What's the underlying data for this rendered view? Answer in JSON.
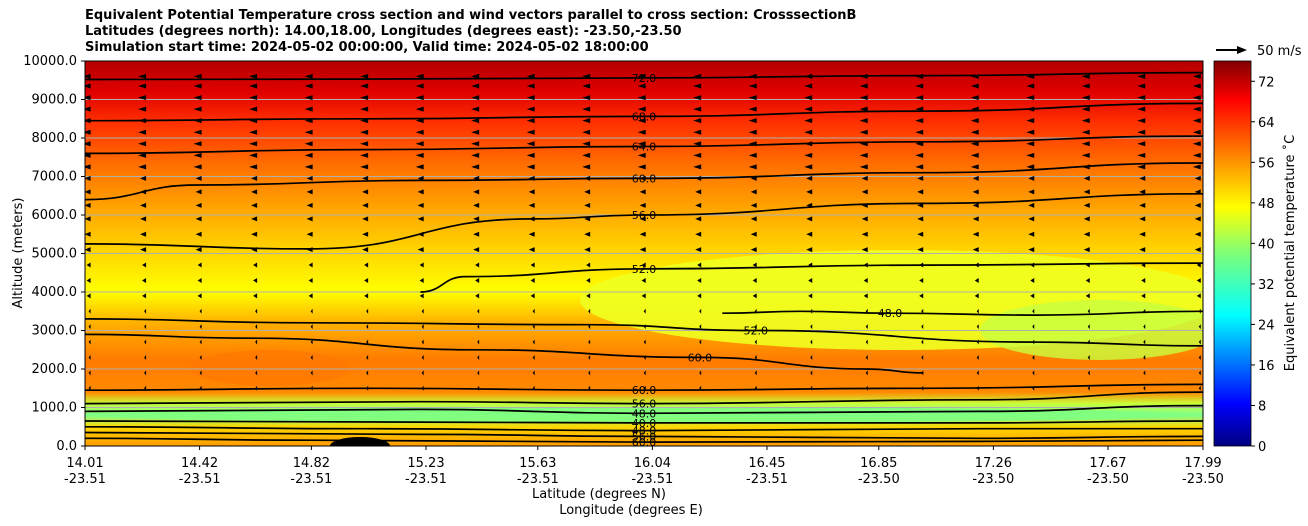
{
  "chart_data": {
    "type": "contourf",
    "title_lines": [
      "Equivalent Potential Temperature cross section and wind vectors parallel to cross section: CrosssectionB",
      "Latitudes (degrees north): 14.00,18.00, Longitudes (degrees east): -23.50,-23.50",
      "Simulation start time: 2024-05-02 00:00:00, Valid time: 2024-05-02 18:00:00"
    ],
    "xlabel_lat": "Latitude (degrees N)",
    "xlabel_lon": "Longitude (degrees E)",
    "ylabel": "Altitude (meters)",
    "ylim": [
      0,
      10000
    ],
    "yticks": [
      {
        "value": 0,
        "label": "0.0"
      },
      {
        "value": 1000,
        "label": "1000.0"
      },
      {
        "value": 2000,
        "label": "2000.0"
      },
      {
        "value": 3000,
        "label": "3000.0"
      },
      {
        "value": 4000,
        "label": "4000.0"
      },
      {
        "value": 5000,
        "label": "5000.0"
      },
      {
        "value": 6000,
        "label": "6000.0"
      },
      {
        "value": 7000,
        "label": "7000.0"
      },
      {
        "value": 8000,
        "label": "8000.0"
      },
      {
        "value": 9000,
        "label": "9000.0"
      },
      {
        "value": 10000,
        "label": "10000.0"
      }
    ],
    "xlim": [
      0,
      1
    ],
    "xticks": [
      {
        "frac": 0.0,
        "lat": "14.01",
        "lon": "-23.51"
      },
      {
        "frac": 0.1025,
        "lat": "14.42",
        "lon": "-23.51"
      },
      {
        "frac": 0.2025,
        "lat": "14.82",
        "lon": "-23.51"
      },
      {
        "frac": 0.305,
        "lat": "15.23",
        "lon": "-23.51"
      },
      {
        "frac": 0.405,
        "lat": "15.63",
        "lon": "-23.51"
      },
      {
        "frac": 0.5075,
        "lat": "16.04",
        "lon": "-23.51"
      },
      {
        "frac": 0.61,
        "lat": "16.45",
        "lon": "-23.51"
      },
      {
        "frac": 0.71,
        "lat": "16.85",
        "lon": "-23.50"
      },
      {
        "frac": 0.8125,
        "lat": "17.26",
        "lon": "-23.50"
      },
      {
        "frac": 0.915,
        "lat": "17.67",
        "lon": "-23.50"
      },
      {
        "frac": 1.0,
        "lat": "17.99",
        "lon": "-23.50"
      }
    ],
    "colorbar": {
      "label": "Equivalent potential temperature ˚C",
      "vmin": 0,
      "vmax": 76,
      "ticks": [
        0,
        8,
        16,
        24,
        32,
        40,
        48,
        56,
        64,
        72
      ]
    },
    "quiver_key": {
      "label": "50 m/s",
      "speed": 50
    },
    "contour_lines": [
      {
        "value": 72,
        "label": "72.0",
        "points": [
          [
            0,
            9520
          ],
          [
            0.25,
            9530
          ],
          [
            0.5,
            9560
          ],
          [
            0.75,
            9620
          ],
          [
            1,
            9700
          ]
        ]
      },
      {
        "value": 68,
        "label": "68.0",
        "points": [
          [
            0,
            8450
          ],
          [
            0.25,
            8500
          ],
          [
            0.5,
            8560
          ],
          [
            0.75,
            8700
          ],
          [
            1,
            8900
          ]
        ]
      },
      {
        "value": 64,
        "label": "64.0",
        "points": [
          [
            0,
            7600
          ],
          [
            0.25,
            7700
          ],
          [
            0.5,
            7780
          ],
          [
            0.75,
            7900
          ],
          [
            1,
            8050
          ]
        ]
      },
      {
        "value": 60,
        "label": "60.0",
        "points": [
          [
            0,
            6400
          ],
          [
            0.1,
            6780
          ],
          [
            0.3,
            6900
          ],
          [
            0.5,
            6950
          ],
          [
            0.75,
            7100
          ],
          [
            1,
            7350
          ]
        ]
      },
      {
        "value": 56,
        "label": "56.0",
        "points": [
          [
            0,
            5250
          ],
          [
            0.2,
            5120
          ],
          [
            0.4,
            5900
          ],
          [
            0.5,
            6000
          ],
          [
            0.75,
            6300
          ],
          [
            1,
            6550
          ]
        ]
      },
      {
        "value": 52,
        "label": "52.0",
        "points": [
          [
            0.3,
            4000
          ],
          [
            0.34,
            4400
          ],
          [
            0.5,
            4600
          ],
          [
            0.75,
            4700
          ],
          [
            1,
            4750
          ]
        ]
      },
      {
        "value": 52,
        "label": "52.0",
        "points": [
          [
            0,
            3300
          ],
          [
            0.2,
            3200
          ],
          [
            0.45,
            3150
          ],
          [
            0.6,
            3000
          ],
          [
            0.85,
            2700
          ],
          [
            1,
            2600
          ]
        ]
      },
      {
        "value": 48,
        "label": "48.0",
        "points": [
          [
            0.57,
            3450
          ],
          [
            0.64,
            3500
          ],
          [
            0.72,
            3450
          ],
          [
            0.85,
            3400
          ],
          [
            1,
            3500
          ]
        ]
      },
      {
        "value": 60,
        "label": "60.0",
        "points": [
          [
            0,
            2900
          ],
          [
            0.15,
            2800
          ],
          [
            0.35,
            2500
          ],
          [
            0.55,
            2300
          ],
          [
            0.7,
            2000
          ],
          [
            0.75,
            1900
          ]
        ]
      },
      {
        "value": 60,
        "label": "60.0",
        "points": [
          [
            0,
            1450
          ],
          [
            0.25,
            1500
          ],
          [
            0.5,
            1450
          ],
          [
            0.75,
            1500
          ],
          [
            1,
            1600
          ]
        ]
      },
      {
        "value": 56,
        "label": "56.0",
        "points": [
          [
            0,
            1100
          ],
          [
            0.3,
            1150
          ],
          [
            0.5,
            1100
          ],
          [
            0.8,
            1200
          ],
          [
            1,
            1400
          ]
        ]
      },
      {
        "value": 48,
        "label": "48.0",
        "points": [
          [
            0,
            900
          ],
          [
            0.3,
            950
          ],
          [
            0.5,
            850
          ],
          [
            0.8,
            900
          ],
          [
            1,
            1050
          ]
        ]
      },
      {
        "value": 40,
        "label": "40.0",
        "points": [
          [
            0,
            650
          ],
          [
            0.3,
            620
          ],
          [
            0.5,
            600
          ],
          [
            0.8,
            600
          ],
          [
            1,
            650
          ]
        ]
      },
      {
        "value": 48,
        "label": "48.0",
        "points": [
          [
            0,
            500
          ],
          [
            0.25,
            450
          ],
          [
            0.5,
            400
          ],
          [
            0.8,
            450
          ],
          [
            1,
            450
          ]
        ]
      },
      {
        "value": 56,
        "label": "56.0",
        "points": [
          [
            0,
            350
          ],
          [
            0.3,
            300
          ],
          [
            0.5,
            250
          ],
          [
            0.8,
            200
          ],
          [
            1,
            250
          ]
        ]
      },
      {
        "value": 60,
        "label": "60.0",
        "points": [
          [
            0,
            200
          ],
          [
            0.2,
            150
          ],
          [
            0.5,
            100
          ],
          [
            0.8,
            120
          ],
          [
            1,
            150
          ]
        ]
      }
    ]
  }
}
